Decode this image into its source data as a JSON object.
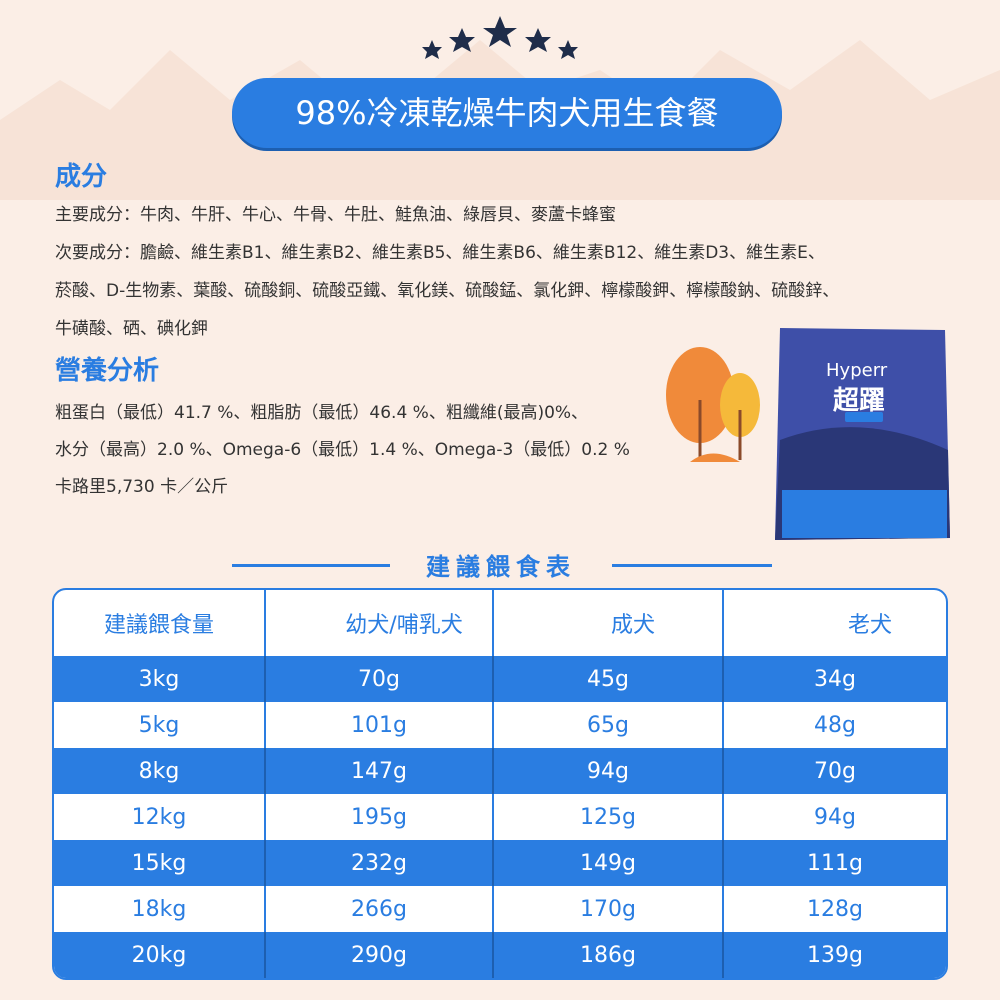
{
  "header": {
    "title": "98%冷凍乾燥牛肉犬用生食餐"
  },
  "ingredients": {
    "heading": "成分",
    "lines": [
      "主要成分：牛肉、牛肝、牛心、牛骨、牛肚、鮭魚油、綠唇貝、麥蘆卡蜂蜜",
      "次要成分：膽鹼、維生素B1、維生素B2、維生素B5、維生素B6、維生素B12、維生素D3、維生素E、",
      "菸酸、D-生物素、葉酸、硫酸銅、硫酸亞鐵、氧化鎂、硫酸錳、氯化鉀、檸檬酸鉀、檸檬酸鈉、硫酸鋅、",
      "牛磺酸、硒、碘化鉀"
    ]
  },
  "nutrition": {
    "heading": "營養分析",
    "lines": [
      "粗蛋白（最低）41.7 %、粗脂肪（最低）46.4 %、粗纖維(最高)0%、",
      "水分（最高）2.0 %、Omega-6（最低）1.4 %、Omega-3（最低）0.2 %",
      "卡路里5,730 卡／公斤"
    ]
  },
  "product": {
    "brand": "Hyperr",
    "name": "超躍"
  },
  "table": {
    "title": "建議餵食表",
    "header": [
      "建議餵食量",
      "幼犬/哺乳犬",
      "成犬",
      "老犬"
    ],
    "rows": [
      [
        "3kg",
        "70g",
        "45g",
        "34g"
      ],
      [
        "5kg",
        "101g",
        "65g",
        "48g"
      ],
      [
        "8kg",
        "147g",
        "94g",
        "70g"
      ],
      [
        "12kg",
        "195g",
        "125g",
        "94g"
      ],
      [
        "15kg",
        "232g",
        "149g",
        "111g"
      ],
      [
        "18kg",
        "266g",
        "170g",
        "128g"
      ],
      [
        "20kg",
        "290g",
        "186g",
        "139g"
      ]
    ]
  }
}
